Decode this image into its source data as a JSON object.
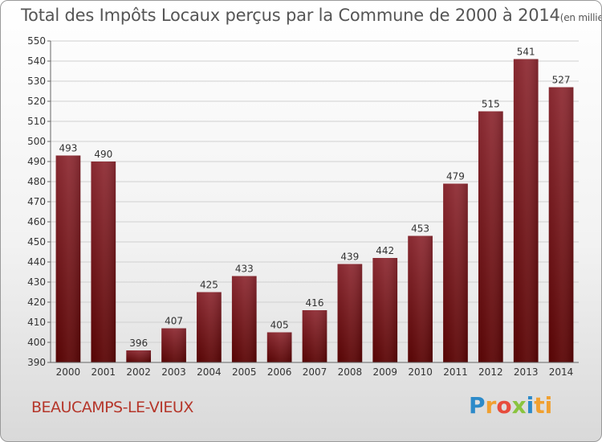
{
  "chart_data": {
    "type": "bar",
    "title": "Total des Impôts Locaux perçus par la Commune de 2000 à 2014",
    "subtitle": "(en milliers d'€)",
    "categories": [
      "2000",
      "2001",
      "2002",
      "2003",
      "2004",
      "2005",
      "2006",
      "2007",
      "2008",
      "2009",
      "2010",
      "2011",
      "2012",
      "2013",
      "2014"
    ],
    "values": [
      493,
      490,
      396,
      407,
      425,
      433,
      405,
      416,
      439,
      442,
      453,
      479,
      515,
      541,
      527
    ],
    "ylim": [
      390,
      550
    ],
    "yticks": [
      390,
      400,
      410,
      420,
      430,
      440,
      450,
      460,
      470,
      480,
      490,
      500,
      510,
      520,
      530,
      540,
      550
    ],
    "xlabel": "",
    "ylabel": "",
    "grid": true,
    "bar_color": "#7a1a1f"
  },
  "commune": "BEAUCAMPS-LE-VIEUX",
  "brand": [
    "P",
    "r",
    "o",
    "x",
    "i",
    "ti"
  ]
}
